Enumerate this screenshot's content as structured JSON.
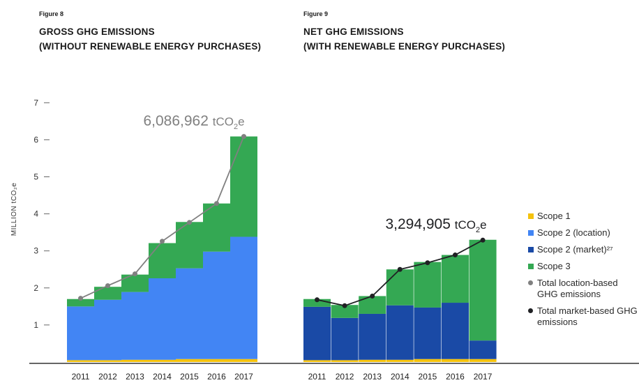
{
  "figures": [
    {
      "label": "Figure 8",
      "title_line1": "GROSS GHG EMISSIONS",
      "title_line2": "(WITHOUT RENEWABLE ENERGY PURCHASES)"
    },
    {
      "label": "Figure 9",
      "title_line1": "NET GHG EMISSIONS",
      "title_line2": "(WITH RENEWABLE ENERGY PURCHASES)"
    }
  ],
  "y_axis_label": "MILLION tCO₂e",
  "legend": {
    "scope1": "Scope 1",
    "scope2_location": "Scope 2 (location)",
    "scope2_market": "Scope 2 (market)²⁷",
    "scope3": "Scope 3",
    "total_location": "Total location-based GHG emissions",
    "total_market": "Total market-based GHG emissions"
  },
  "colors": {
    "scope1": "#f4c20d",
    "scope2_location": "#4285f4",
    "scope2_market": "#1a4aa6",
    "scope3": "#34a853",
    "line_location": "#808080",
    "line_market": "#202124"
  },
  "chart_data": [
    {
      "type": "bar",
      "stacked": true,
      "title": "GROSS GHG EMISSIONS (WITHOUT RENEWABLE ENERGY PURCHASES)",
      "ylabel": "MILLION tCO₂e",
      "ylim": [
        0,
        7
      ],
      "yticks": [
        1,
        2,
        3,
        4,
        5,
        6,
        7
      ],
      "categories": [
        "2011",
        "2012",
        "2013",
        "2014",
        "2015",
        "2016",
        "2017"
      ],
      "series": [
        {
          "name": "Scope 1",
          "values": [
            0.05,
            0.05,
            0.06,
            0.06,
            0.08,
            0.08,
            0.08
          ]
        },
        {
          "name": "Scope 2 (location)",
          "values": [
            1.45,
            1.63,
            1.83,
            2.2,
            2.45,
            2.9,
            3.3
          ]
        },
        {
          "name": "Scope 3",
          "values": [
            0.2,
            0.35,
            0.47,
            0.95,
            1.25,
            1.3,
            2.71
          ]
        }
      ],
      "line": {
        "name": "Total location-based GHG emissions",
        "values": [
          1.72,
          2.06,
          2.38,
          3.26,
          3.77,
          4.28,
          6.09
        ]
      },
      "annotation": {
        "value": "6,086,962",
        "unit": "tCO",
        "sub": "2",
        "suffix": "e"
      }
    },
    {
      "type": "bar",
      "stacked": true,
      "title": "NET GHG EMISSIONS (WITH RENEWABLE ENERGY PURCHASES)",
      "ylim": [
        0,
        7
      ],
      "categories": [
        "2011",
        "2012",
        "2013",
        "2014",
        "2015",
        "2016",
        "2017"
      ],
      "series": [
        {
          "name": "Scope 1",
          "values": [
            0.05,
            0.05,
            0.06,
            0.06,
            0.08,
            0.08,
            0.08
          ]
        },
        {
          "name": "Scope 2 (market)",
          "values": [
            1.44,
            1.14,
            1.24,
            1.47,
            1.39,
            1.52,
            0.5
          ]
        },
        {
          "name": "Scope 3",
          "values": [
            0.21,
            0.35,
            0.48,
            0.97,
            1.23,
            1.29,
            2.72
          ]
        }
      ],
      "line": {
        "name": "Total market-based GHG emissions",
        "values": [
          1.68,
          1.52,
          1.78,
          2.5,
          2.68,
          2.89,
          3.29
        ]
      },
      "annotation": {
        "value": "3,294,905",
        "unit": "tCO",
        "sub": "2",
        "suffix": "e"
      }
    }
  ]
}
